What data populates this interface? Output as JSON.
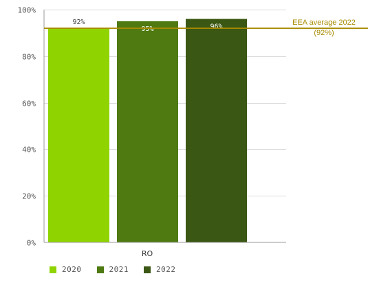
{
  "chart_data": {
    "type": "bar",
    "categories": [
      "RO"
    ],
    "series": [
      {
        "name": "2020",
        "values": [
          92
        ],
        "labels": [
          "92%"
        ],
        "color": "#8fd400",
        "label_color": "#444444"
      },
      {
        "name": "2021",
        "values": [
          95
        ],
        "labels": [
          "95%"
        ],
        "color": "#4e7a11",
        "label_color": "#ffffff"
      },
      {
        "name": "2022",
        "values": [
          96
        ],
        "labels": [
          "96%"
        ],
        "color": "#3a5713",
        "label_color": "#ffffff"
      }
    ],
    "ylim": [
      0,
      100
    ],
    "yticks": [
      0,
      20,
      40,
      60,
      80,
      100
    ],
    "ytick_labels": [
      "0%",
      "20%",
      "40%",
      "60%",
      "80%",
      "100%"
    ],
    "reference_line": {
      "value": 92,
      "label_line1": "EEA average 2022",
      "label_line2": "(92%)",
      "color": "#a88a00"
    },
    "grid": true,
    "legend_position": "bottom-left"
  }
}
